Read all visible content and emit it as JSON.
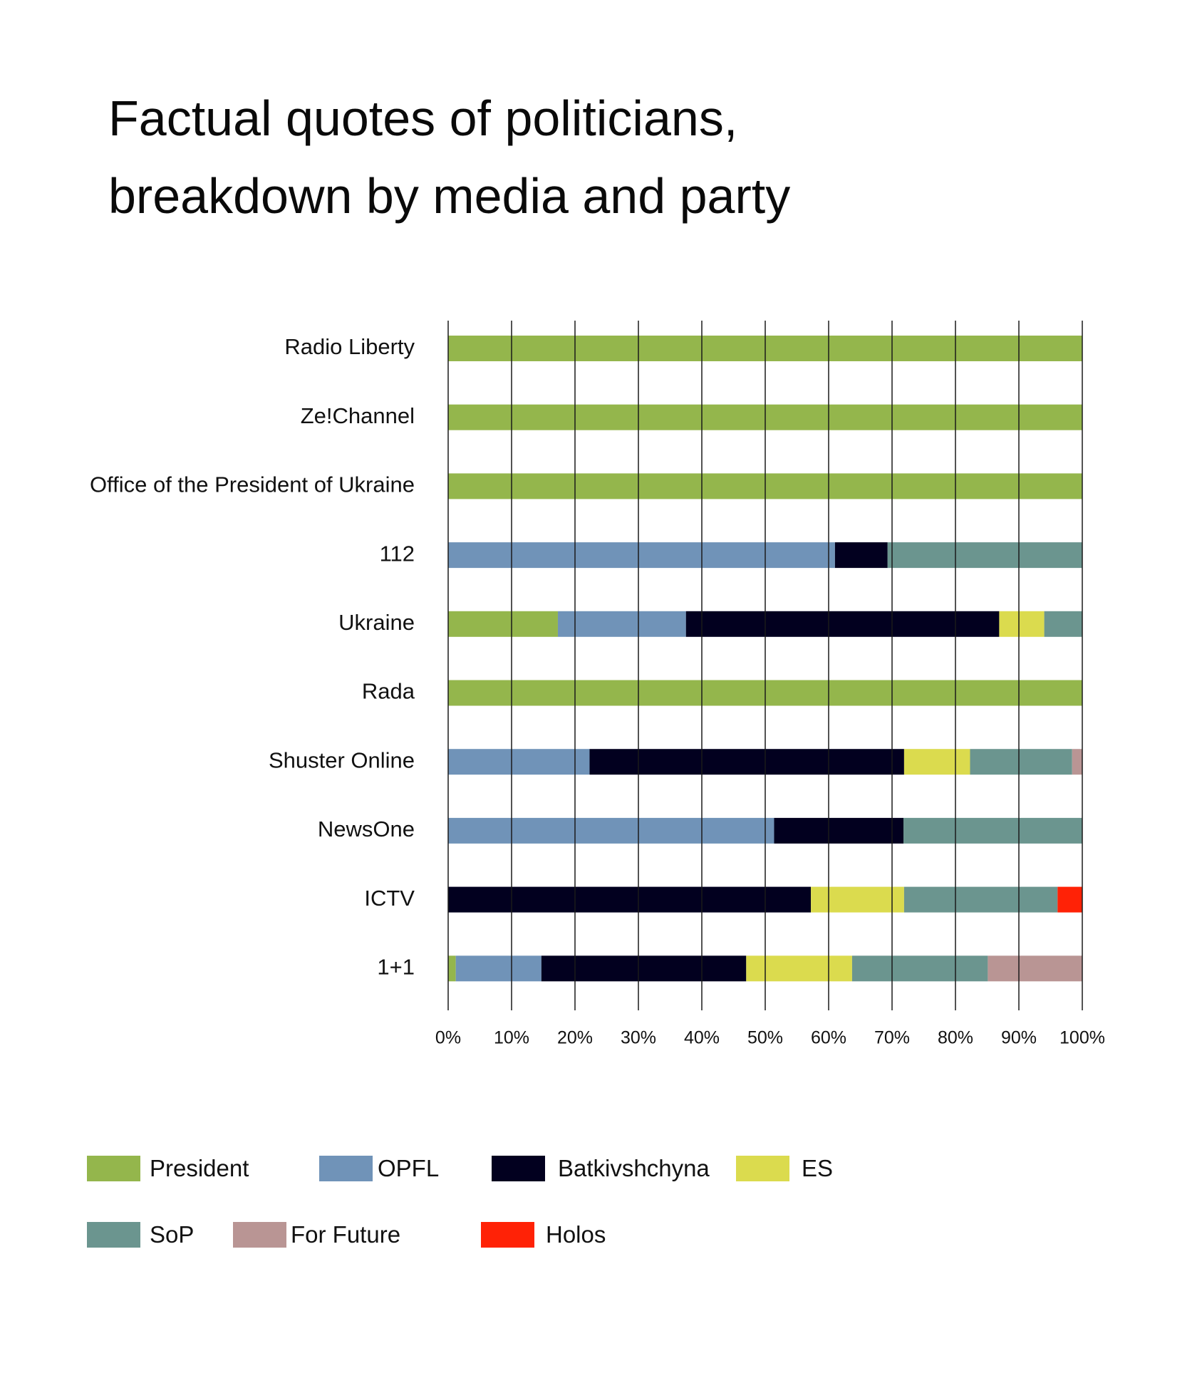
{
  "title_lines": [
    "Factual quotes of politicians,",
    "breakdown by media and party"
  ],
  "chart_data": {
    "type": "bar",
    "orientation": "horizontal",
    "stacked": true,
    "percent_stacked": true,
    "categories": [
      "Radio Liberty",
      "Ze!Channel",
      "Office of the President of Ukraine",
      "112",
      "Ukraine",
      "Rada",
      "Shuster Online",
      "NewsOne",
      "ICTV",
      "1+1"
    ],
    "series": [
      {
        "name": "President",
        "color": "#94b64c",
        "values": [
          100,
          100,
          100,
          0,
          17.3,
          100,
          0,
          0,
          0,
          1.2
        ]
      },
      {
        "name": "OPFL",
        "color": "#7093b8",
        "values": [
          0,
          0,
          0,
          61,
          20.2,
          0,
          22.3,
          51.4,
          0,
          13.5
        ]
      },
      {
        "name": "Batkivshchyna",
        "color": "#02001f",
        "values": [
          0,
          0,
          0,
          8.3,
          49.4,
          0,
          49.6,
          20.4,
          57.2,
          32.3
        ]
      },
      {
        "name": "ES",
        "color": "#dbdb4e",
        "values": [
          0,
          0,
          0,
          0,
          7.1,
          0,
          10.4,
          0,
          14.7,
          16.7
        ]
      },
      {
        "name": "SoP",
        "color": "#6b958f",
        "values": [
          0,
          0,
          0,
          30.7,
          6.0,
          0,
          16.1,
          28.2,
          24.2,
          21.4
        ]
      },
      {
        "name": "For Future",
        "color": "#b99594",
        "values": [
          0,
          0,
          0,
          0,
          0,
          0,
          1.6,
          0,
          0,
          14.9
        ]
      },
      {
        "name": "Holos",
        "color": "#ff2206",
        "values": [
          0,
          0,
          0,
          0,
          0,
          0,
          0,
          0,
          3.9,
          0
        ]
      }
    ],
    "x_ticks": [
      "0%",
      "10%",
      "20%",
      "30%",
      "40%",
      "50%",
      "60%",
      "70%",
      "80%",
      "90%",
      "100%"
    ],
    "xlim": [
      0,
      100
    ],
    "grid": "vertical",
    "legend_position": "bottom"
  }
}
